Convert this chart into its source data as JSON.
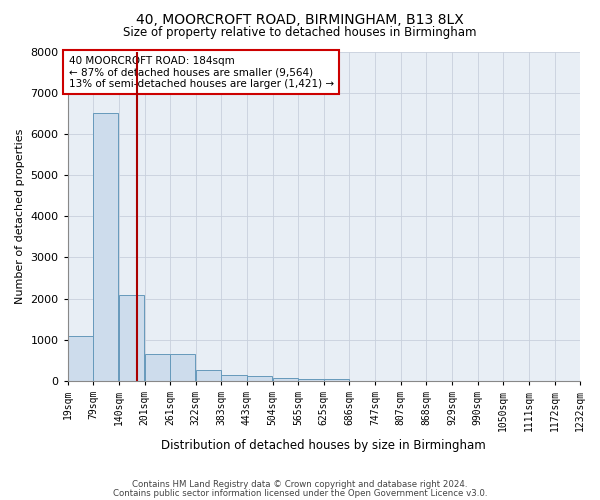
{
  "title": "40, MOORCROFT ROAD, BIRMINGHAM, B13 8LX",
  "subtitle": "Size of property relative to detached houses in Birmingham",
  "xlabel": "Distribution of detached houses by size in Birmingham",
  "ylabel": "Number of detached properties",
  "footer1": "Contains HM Land Registry data © Crown copyright and database right 2024.",
  "footer2": "Contains public sector information licensed under the Open Government Licence v3.0.",
  "annotation_line1": "40 MOORCROFT ROAD: 184sqm",
  "annotation_line2": "← 87% of detached houses are smaller (9,564)",
  "annotation_line3": "13% of semi-detached houses are larger (1,421) →",
  "property_size": 184,
  "bar_color": "#cddcec",
  "bar_edge_color": "#6699bb",
  "vline_color": "#aa0000",
  "grid_color": "#c8d0dc",
  "background_color": "#e8eef5",
  "bins": [
    19,
    79,
    140,
    201,
    261,
    322,
    383,
    443,
    504,
    565,
    625,
    686,
    747,
    807,
    868,
    929,
    990,
    1050,
    1111,
    1172,
    1232
  ],
  "bin_labels": [
    "19sqm",
    "79sqm",
    "140sqm",
    "201sqm",
    "261sqm",
    "322sqm",
    "383sqm",
    "443sqm",
    "504sqm",
    "565sqm",
    "625sqm",
    "686sqm",
    "747sqm",
    "807sqm",
    "868sqm",
    "929sqm",
    "990sqm",
    "1050sqm",
    "1111sqm",
    "1172sqm",
    "1232sqm"
  ],
  "counts": [
    1100,
    6500,
    2100,
    650,
    650,
    270,
    140,
    110,
    85,
    60,
    50,
    0,
    0,
    0,
    0,
    0,
    0,
    0,
    0,
    0
  ],
  "ylim": [
    0,
    8000
  ],
  "yticks": [
    0,
    1000,
    2000,
    3000,
    4000,
    5000,
    6000,
    7000,
    8000
  ]
}
